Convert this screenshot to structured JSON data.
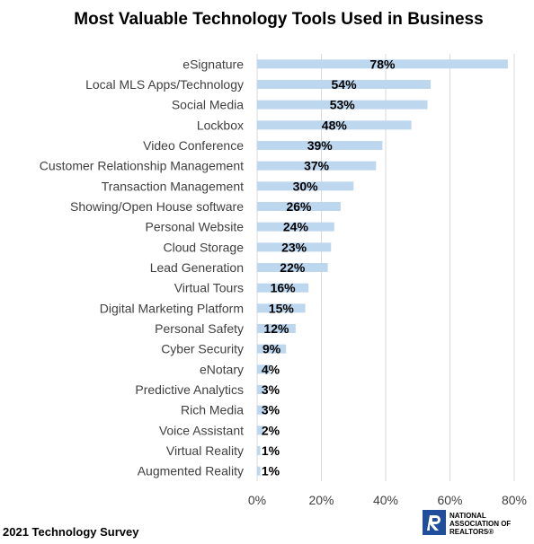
{
  "chart_data": {
    "type": "bar",
    "orientation": "horizontal",
    "title": "Most Valuable Technology Tools Used in Business",
    "categories": [
      "eSignature",
      "Local MLS Apps/Technology",
      "Social Media",
      "Lockbox",
      "Video Conference",
      "Customer Relationship Management",
      "Transaction Management",
      "Showing/Open House software",
      "Personal Website",
      "Cloud Storage",
      "Lead Generation",
      "Virtual Tours",
      "Digital Marketing Platform",
      "Personal Safety",
      "Cyber Security",
      "eNotary",
      "Predictive Analytics",
      "Rich Media",
      "Voice Assistant",
      "Virtual Reality",
      "Augmented Reality"
    ],
    "values": [
      78,
      54,
      53,
      48,
      39,
      37,
      30,
      26,
      24,
      23,
      22,
      16,
      15,
      12,
      9,
      4,
      3,
      3,
      2,
      1,
      1
    ],
    "value_labels": [
      "78%",
      "54%",
      "53%",
      "48%",
      "39%",
      "37%",
      "30%",
      "26%",
      "24%",
      "23%",
      "22%",
      "16%",
      "15%",
      "12%",
      "9%",
      "4%",
      "3%",
      "3%",
      "2%",
      "1%",
      "1%"
    ],
    "xlim": [
      0,
      80
    ],
    "x_ticks": [
      "0%",
      "20%",
      "40%",
      "60%",
      "80%"
    ],
    "bar_color": "#bdd7ee",
    "grid": true
  },
  "footer": {
    "survey_label": "2021 Technology Survey",
    "logo_text": "NATIONAL ASSOCIATION OF REALTORS®",
    "logo_color": "#1f4e9c"
  }
}
